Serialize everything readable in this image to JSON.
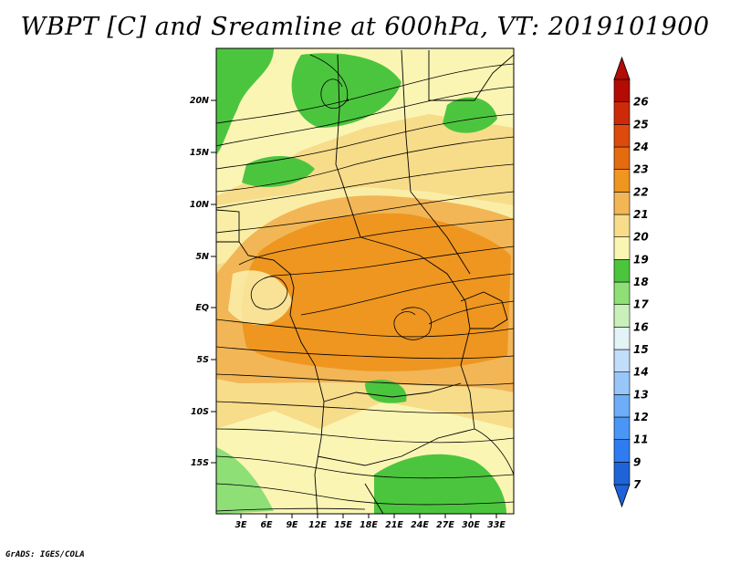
{
  "title": "WBPT [C] and Sreamline at 600hPa, VT: 2019101900",
  "credit": "GrADS: IGES/COLA",
  "map": {
    "variable": "WBPT",
    "units": "C",
    "level": "600hPa",
    "valid_time": "2019101900",
    "lon_labels": [
      "3E",
      "6E",
      "9E",
      "12E",
      "15E",
      "18E",
      "21E",
      "24E",
      "27E",
      "30E",
      "33E"
    ],
    "lat_labels": [
      "20N",
      "15N",
      "10N",
      "5N",
      "EQ",
      "5S",
      "10S",
      "15S"
    ]
  },
  "colorbar": {
    "labels": [
      "7",
      "9",
      "11",
      "12",
      "13",
      "14",
      "15",
      "16",
      "17",
      "18",
      "19",
      "20",
      "21",
      "22",
      "23",
      "24",
      "25",
      "26"
    ],
    "colors": [
      "#1e63d8",
      "#2f7cf0",
      "#4a96f5",
      "#6eadf7",
      "#98c6f8",
      "#c2ddfa",
      "#e4f3f6",
      "#c8f0b8",
      "#8edf76",
      "#4cc53e",
      "#fbf5b4",
      "#f7dc8a",
      "#f2b656",
      "#ee9620",
      "#e46b10",
      "#dc4a0c",
      "#cc2a08",
      "#b20c04"
    ]
  },
  "palette": {
    "green_dark": "#4cc53e",
    "green_mid": "#8edf76",
    "cream": "#fbf5b4",
    "tan": "#f7dc8a",
    "orange_light": "#f2b656",
    "orange": "#ee9620"
  }
}
